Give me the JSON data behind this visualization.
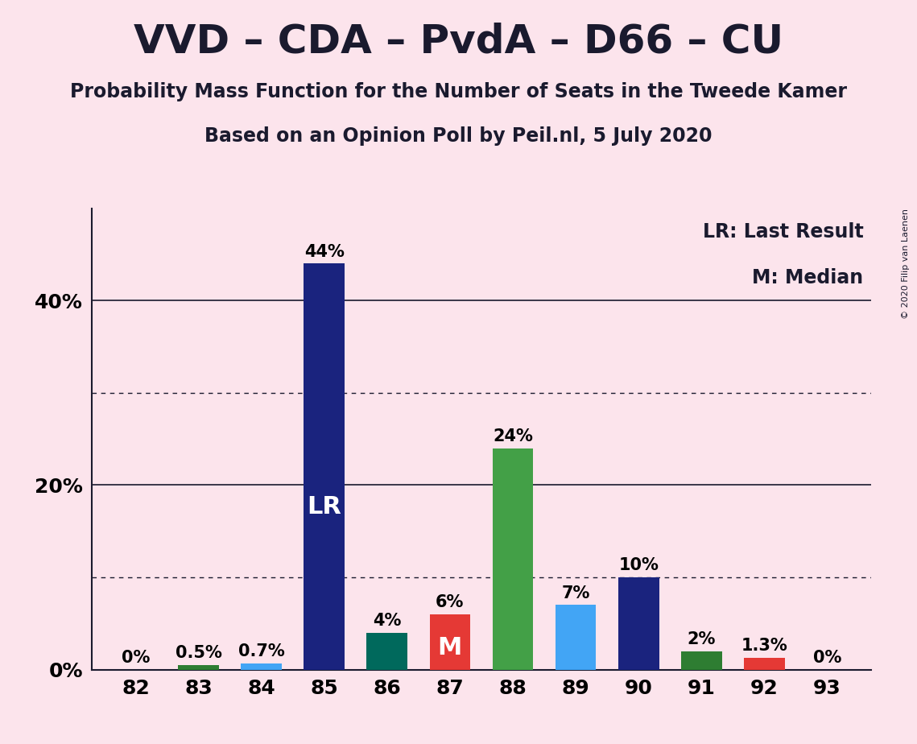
{
  "title": "VVD – CDA – PvdA – D66 – CU",
  "subtitle1": "Probability Mass Function for the Number of Seats in the Tweede Kamer",
  "subtitle2": "Based on an Opinion Poll by Peil.nl, 5 July 2020",
  "categories": [
    82,
    83,
    84,
    85,
    86,
    87,
    88,
    89,
    90,
    91,
    92,
    93
  ],
  "values": [
    0.0,
    0.5,
    0.7,
    44.0,
    4.0,
    6.0,
    24.0,
    7.0,
    10.0,
    2.0,
    1.3,
    0.0
  ],
  "bar_colors": [
    "#1a237e",
    "#2e7d32",
    "#42a5f5",
    "#1a237e",
    "#00695c",
    "#e53935",
    "#43a047",
    "#42a5f5",
    "#1a237e",
    "#2e7d32",
    "#e53935",
    "#1a237e"
  ],
  "labels": [
    "0%",
    "0.5%",
    "0.7%",
    "44%",
    "4%",
    "6%",
    "24%",
    "7%",
    "10%",
    "2%",
    "1.3%",
    "0%"
  ],
  "bar_annotations": [
    "",
    "",
    "",
    "LR",
    "",
    "M",
    "",
    "",
    "",
    "",
    "",
    ""
  ],
  "background_color": "#fce4ec",
  "ylabel_ticks": [
    0,
    20,
    40
  ],
  "ytick_labels": [
    "0%",
    "20%",
    "40%"
  ],
  "ylim": [
    0,
    50
  ],
  "legend_text1": "LR: Last Result",
  "legend_text2": "M: Median",
  "copyright": "© 2020 Filip van Laenen",
  "dotted_lines": [
    10,
    30
  ],
  "solid_lines": [
    20,
    40
  ],
  "title_fontsize": 36,
  "subtitle_fontsize": 17,
  "bar_width": 0.65,
  "label_above_fontsize": 15,
  "annotation_fontsize": 22,
  "tick_fontsize": 18,
  "legend_fontsize": 17
}
